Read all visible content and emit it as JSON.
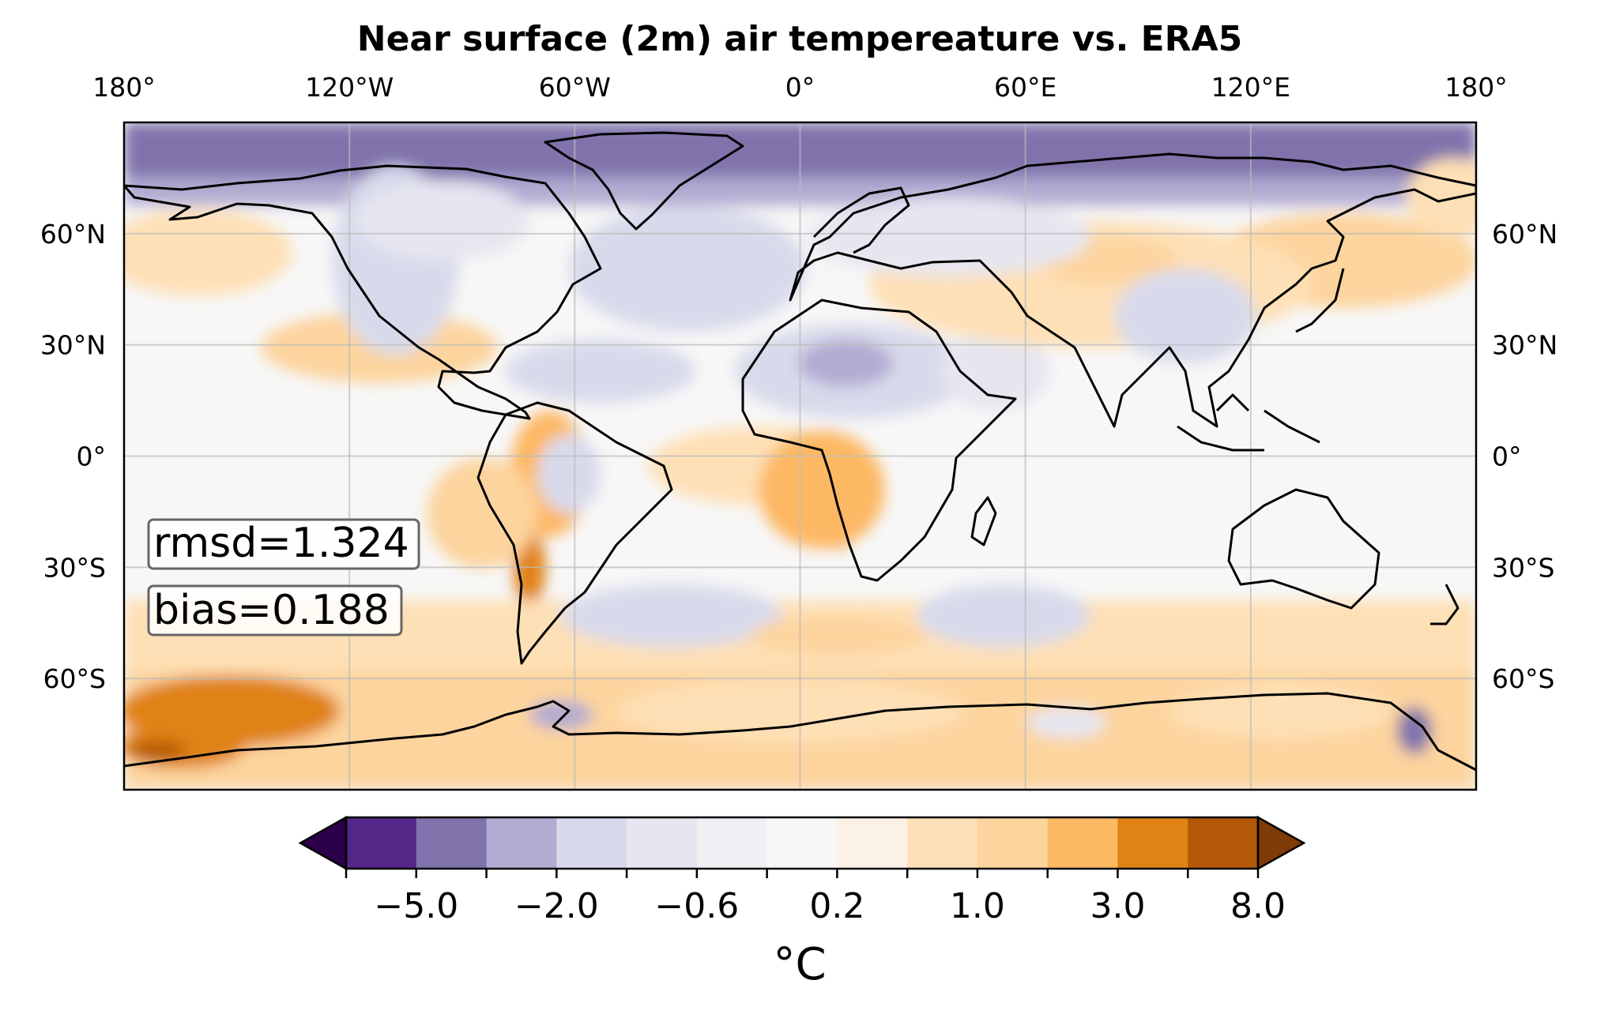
{
  "title": "Near surface (2m) air tempereature vs. ERA5",
  "projection": "PlateCarree",
  "extent": {
    "lon": [
      -180,
      180
    ],
    "lat": [
      -90,
      90
    ]
  },
  "gridlines": true,
  "coastlines": true,
  "lon_ticks": [
    {
      "value": -180,
      "label": "180°"
    },
    {
      "value": -120,
      "label": "120°W"
    },
    {
      "value": -60,
      "label": "60°W"
    },
    {
      "value": 0,
      "label": "0°"
    },
    {
      "value": 60,
      "label": "60°E"
    },
    {
      "value": 120,
      "label": "120°E"
    },
    {
      "value": 180,
      "label": "180°"
    }
  ],
  "lat_ticks": [
    {
      "value": 60,
      "label": "60°N"
    },
    {
      "value": 30,
      "label": "30°N"
    },
    {
      "value": 0,
      "label": "0°"
    },
    {
      "value": -30,
      "label": "30°S"
    },
    {
      "value": -60,
      "label": "60°S"
    }
  ],
  "stats": {
    "rmsd": "rmsd=1.324",
    "bias": "bias=0.188"
  },
  "colorbar": {
    "label": "°C",
    "extend": "both",
    "boundaries": [
      -8.0,
      -5.0,
      -3.0,
      -2.0,
      -1.0,
      -0.6,
      -0.2,
      0.2,
      0.6,
      1.0,
      2.0,
      3.0,
      5.0,
      8.0
    ],
    "labeled_ticks": [
      "−5.0",
      "−2.0",
      "−0.6",
      "0.2",
      "1.0",
      "3.0",
      "8.0"
    ],
    "under_color": "#2d004b",
    "over_color": "#7f3b08",
    "colors": [
      "#542788",
      "#8073ac",
      "#b2abd2",
      "#d8daeb",
      "#e6e6f0",
      "#efeff4",
      "#f7f7f7",
      "#fbf1e5",
      "#fee0b6",
      "#fdd49e",
      "#fdb863",
      "#e08214",
      "#b35806"
    ]
  },
  "colors": {
    "ocean_neutral": "#f7f7f7",
    "cold_strong": "#8073ac",
    "cold_medium": "#b2abd2",
    "cold_light": "#d8daeb",
    "warm_light": "#fee0b6",
    "warm_medium": "#fdb863",
    "warm_strong": "#e08214",
    "warm_extreme": "#b35806",
    "coastline": "#000000",
    "gridline": "#bbbbbb"
  }
}
